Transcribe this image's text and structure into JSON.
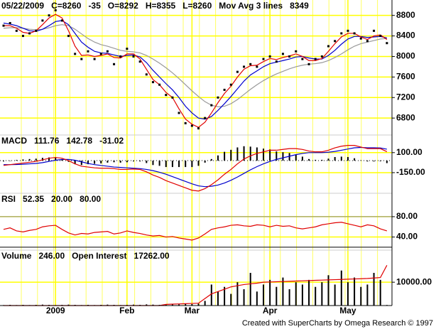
{
  "categories": [
    null,
    null,
    null,
    null,
    null,
    null,
    null,
    null,
    "2009",
    null,
    null,
    null,
    null,
    null,
    null,
    null,
    null,
    null,
    null,
    "Feb",
    null,
    null,
    null,
    null,
    null,
    null,
    null,
    null,
    null,
    "Mar",
    null,
    null,
    null,
    null,
    null,
    null,
    null,
    null,
    null,
    null,
    null,
    "Apr",
    null,
    null,
    null,
    null,
    null,
    null,
    null,
    null,
    null,
    null,
    null,
    "May",
    null,
    null,
    null,
    null,
    null,
    null
  ],
  "footer": "Created with SuperCharts by Omega Research © 1997",
  "chart_data": [
    {
      "type": "line",
      "header": [
        {
          "text": "05/22/2009",
          "color": "#000000"
        },
        {
          "text": "C=8260",
          "color": "#000000"
        },
        {
          "text": "-35",
          "color": "#e00000"
        },
        {
          "text": "O=8292",
          "color": "#000000"
        },
        {
          "text": "H=8355",
          "color": "#000000"
        },
        {
          "text": "L=8260",
          "color": "#000000"
        },
        {
          "text": "Mov Avg 3 lines",
          "color": "#000000"
        },
        {
          "text": "8349",
          "color": "#e00000"
        }
      ],
      "ylim": [
        6470,
        9100
      ],
      "yticks": [
        6800,
        7200,
        7600,
        8000,
        8400,
        8800
      ],
      "series": [
        {
          "style": "line",
          "color": "#999999",
          "values": [
            8550,
            8560,
            8560,
            8550,
            8530,
            8520,
            8530,
            8560,
            8600,
            8620,
            8600,
            8530,
            8440,
            8350,
            8280,
            8230,
            8200,
            8160,
            8120,
            8100,
            8090,
            8070,
            8020,
            7950,
            7870,
            7780,
            7680,
            7570,
            7450,
            7330,
            7220,
            7120,
            7050,
            7020,
            7030,
            7080,
            7160,
            7260,
            7360,
            7450,
            7530,
            7600,
            7660,
            7710,
            7760,
            7800,
            7830,
            7850,
            7860,
            7880,
            7920,
            7980,
            8050,
            8130,
            8200,
            8250,
            8280,
            8310,
            8340,
            8350
          ]
        },
        {
          "style": "line",
          "color": "#0000cc",
          "values": [
            8650,
            8630,
            8600,
            8550,
            8500,
            8490,
            8530,
            8600,
            8680,
            8700,
            8620,
            8450,
            8280,
            8180,
            8100,
            8070,
            8060,
            8030,
            8000,
            8020,
            8030,
            7990,
            7880,
            7730,
            7600,
            7470,
            7350,
            7200,
            7030,
            6900,
            6800,
            6780,
            6830,
            6950,
            7080,
            7220,
            7370,
            7520,
            7640,
            7720,
            7800,
            7860,
            7890,
            7920,
            7950,
            7990,
            8000,
            7970,
            7950,
            7950,
            8020,
            8120,
            8240,
            8340,
            8390,
            8390,
            8370,
            8380,
            8390,
            8360
          ]
        },
        {
          "style": "line",
          "color": "#e00000",
          "values": [
            8600,
            8600,
            8550,
            8470,
            8450,
            8500,
            8620,
            8750,
            8820,
            8750,
            8500,
            8200,
            8020,
            8030,
            8000,
            8020,
            8050,
            7980,
            7970,
            8050,
            8050,
            7950,
            7750,
            7550,
            7450,
            7300,
            7200,
            6980,
            6780,
            6680,
            6620,
            6720,
            6900,
            7100,
            7280,
            7420,
            7600,
            7750,
            7820,
            7830,
            7900,
            7960,
            7940,
            7980,
            8010,
            8050,
            8000,
            7920,
            7920,
            7960,
            8100,
            8250,
            8380,
            8450,
            8450,
            8380,
            8330,
            8400,
            8420,
            8330
          ]
        },
        {
          "style": "dots",
          "color": "#000000",
          "values": [
            8600,
            8650,
            8500,
            8400,
            8450,
            8500,
            8700,
            8800,
            8900,
            8700,
            8400,
            8050,
            7950,
            8100,
            7950,
            8050,
            8100,
            7850,
            8000,
            8150,
            8000,
            7900,
            7650,
            7500,
            7450,
            7250,
            7200,
            6900,
            6700,
            6650,
            6600,
            6800,
            7050,
            7200,
            7350,
            7450,
            7700,
            7800,
            7850,
            7800,
            7950,
            8000,
            7900,
            8050,
            8000,
            8100,
            7950,
            7850,
            7950,
            8000,
            8200,
            8300,
            8450,
            8500,
            8450,
            8350,
            8300,
            8500,
            8400,
            8260
          ]
        }
      ]
    },
    {
      "type": "line",
      "header": [
        {
          "text": "MACD",
          "color": "#000000"
        },
        {
          "text": "111.76",
          "color": "#e00000"
        },
        {
          "text": "142.78",
          "color": "#0000cc"
        },
        {
          "text": "-31.02",
          "color": "#000000"
        }
      ],
      "ylim": [
        -390,
        320
      ],
      "yticks": [
        {
          "value": 100,
          "label": "100.00"
        },
        {
          "value": -150,
          "label": "-150.00"
        }
      ],
      "series": [
        {
          "style": "bars",
          "color": "#000000",
          "values": [
            -10,
            0,
            8,
            15,
            20,
            25,
            35,
            40,
            35,
            15,
            -15,
            -45,
            -55,
            -45,
            -40,
            -35,
            -25,
            -20,
            -25,
            -20,
            -10,
            -10,
            -30,
            -55,
            -65,
            -80,
            -80,
            -80,
            -80,
            -80,
            -65,
            -25,
            20,
            65,
            110,
            135,
            165,
            180,
            175,
            165,
            150,
            140,
            115,
            105,
            95,
            75,
            50,
            20,
            10,
            10,
            25,
            45,
            50,
            45,
            30,
            5,
            -10,
            -10,
            -8,
            -31
          ]
        },
        {
          "style": "line",
          "color": "#0000cc",
          "values": [
            -50,
            -50,
            -48,
            -45,
            -40,
            -35,
            -25,
            -10,
            5,
            15,
            15,
            5,
            -15,
            -35,
            -50,
            -60,
            -70,
            -80,
            -85,
            -90,
            -95,
            -100,
            -110,
            -125,
            -145,
            -170,
            -200,
            -230,
            -260,
            -290,
            -315,
            -325,
            -320,
            -305,
            -280,
            -245,
            -205,
            -160,
            -115,
            -75,
            -40,
            -10,
            15,
            35,
            55,
            75,
            90,
            100,
            100,
            100,
            105,
            115,
            130,
            145,
            160,
            165,
            160,
            160,
            158,
            143
          ]
        },
        {
          "style": "line",
          "color": "#e00000",
          "values": [
            -60,
            -50,
            -40,
            -30,
            -20,
            -10,
            10,
            30,
            40,
            30,
            0,
            -40,
            -70,
            -80,
            -90,
            -95,
            -95,
            -100,
            -110,
            -110,
            -105,
            -110,
            -140,
            -180,
            -210,
            -250,
            -280,
            -310,
            -340,
            -370,
            -380,
            -350,
            -300,
            -240,
            -170,
            -110,
            -40,
            20,
            60,
            90,
            110,
            130,
            130,
            140,
            150,
            150,
            140,
            120,
            110,
            110,
            130,
            160,
            180,
            190,
            190,
            170,
            150,
            150,
            150,
            112
          ]
        }
      ]
    },
    {
      "type": "line",
      "header": [
        {
          "text": "RSI",
          "color": "#000000"
        },
        {
          "text": "52.35",
          "color": "#e00000"
        },
        {
          "text": "20.00",
          "color": "#000000"
        },
        {
          "text": "80.00",
          "color": "#888888"
        }
      ],
      "ylim": [
        17,
        126
      ],
      "yticks": [
        {
          "value": 80,
          "label": "80.00"
        },
        {
          "value": 40,
          "label": "40.00"
        }
      ],
      "hlines": [
        {
          "value": 80,
          "color": "#888888"
        },
        {
          "value": 20,
          "color": "#000000"
        }
      ],
      "series": [
        {
          "style": "line",
          "color": "#e00000",
          "values": [
            55,
            58,
            52,
            50,
            53,
            55,
            60,
            62,
            63,
            55,
            48,
            44,
            47,
            46,
            49,
            50,
            51,
            46,
            48,
            52,
            49,
            47,
            44,
            42,
            43,
            40,
            41,
            38,
            36,
            34,
            38,
            46,
            55,
            58,
            60,
            63,
            64,
            62,
            61,
            64,
            63,
            60,
            63,
            61,
            62,
            58,
            56,
            58,
            60,
            64,
            66,
            68,
            69,
            66,
            63,
            60,
            64,
            62,
            56,
            52
          ]
        }
      ]
    },
    {
      "type": "line",
      "header": [
        {
          "text": "Volume",
          "color": "#000000"
        },
        {
          "text": "246.00",
          "color": "#000000"
        },
        {
          "text": "Open Interest",
          "color": "#000000"
        },
        {
          "text": "17262.00",
          "color": "#e00000"
        }
      ],
      "ylim": [
        0,
        23750
      ],
      "yticks": [
        {
          "value": 10000,
          "label": "10000.00"
        }
      ],
      "series": [
        {
          "style": "bars",
          "color": "#000000",
          "values": [
            200,
            300,
            200,
            300,
            200,
            300,
            400,
            300,
            200,
            300,
            400,
            300,
            200,
            300,
            200,
            300,
            400,
            300,
            200,
            300,
            400,
            300,
            500,
            400,
            300,
            500,
            600,
            500,
            700,
            600,
            800,
            2000,
            9000,
            6000,
            8000,
            5000,
            10000,
            7000,
            14000,
            6000,
            9000,
            11000,
            8000,
            12000,
            7000,
            10000,
            9000,
            11000,
            8000,
            10000,
            13000,
            9000,
            15000,
            10000,
            12000,
            8000,
            9000,
            14000,
            11000,
            246
          ]
        },
        {
          "style": "line",
          "color": "#e00000",
          "values": [
            0,
            0,
            0,
            0,
            0,
            0,
            0,
            0,
            0,
            0,
            0,
            0,
            0,
            0,
            0,
            0,
            0,
            0,
            0,
            0,
            0,
            0,
            0,
            0,
            0,
            500,
            600,
            700,
            800,
            900,
            1000,
            3000,
            5000,
            6000,
            7000,
            8000,
            8500,
            9000,
            9300,
            9600,
            10000,
            10100,
            10200,
            10300,
            10400,
            10500,
            10600,
            10700,
            10800,
            10900,
            11000,
            11100,
            11200,
            11300,
            11400,
            11500,
            11600,
            11800,
            12000,
            17262
          ]
        }
      ]
    }
  ]
}
